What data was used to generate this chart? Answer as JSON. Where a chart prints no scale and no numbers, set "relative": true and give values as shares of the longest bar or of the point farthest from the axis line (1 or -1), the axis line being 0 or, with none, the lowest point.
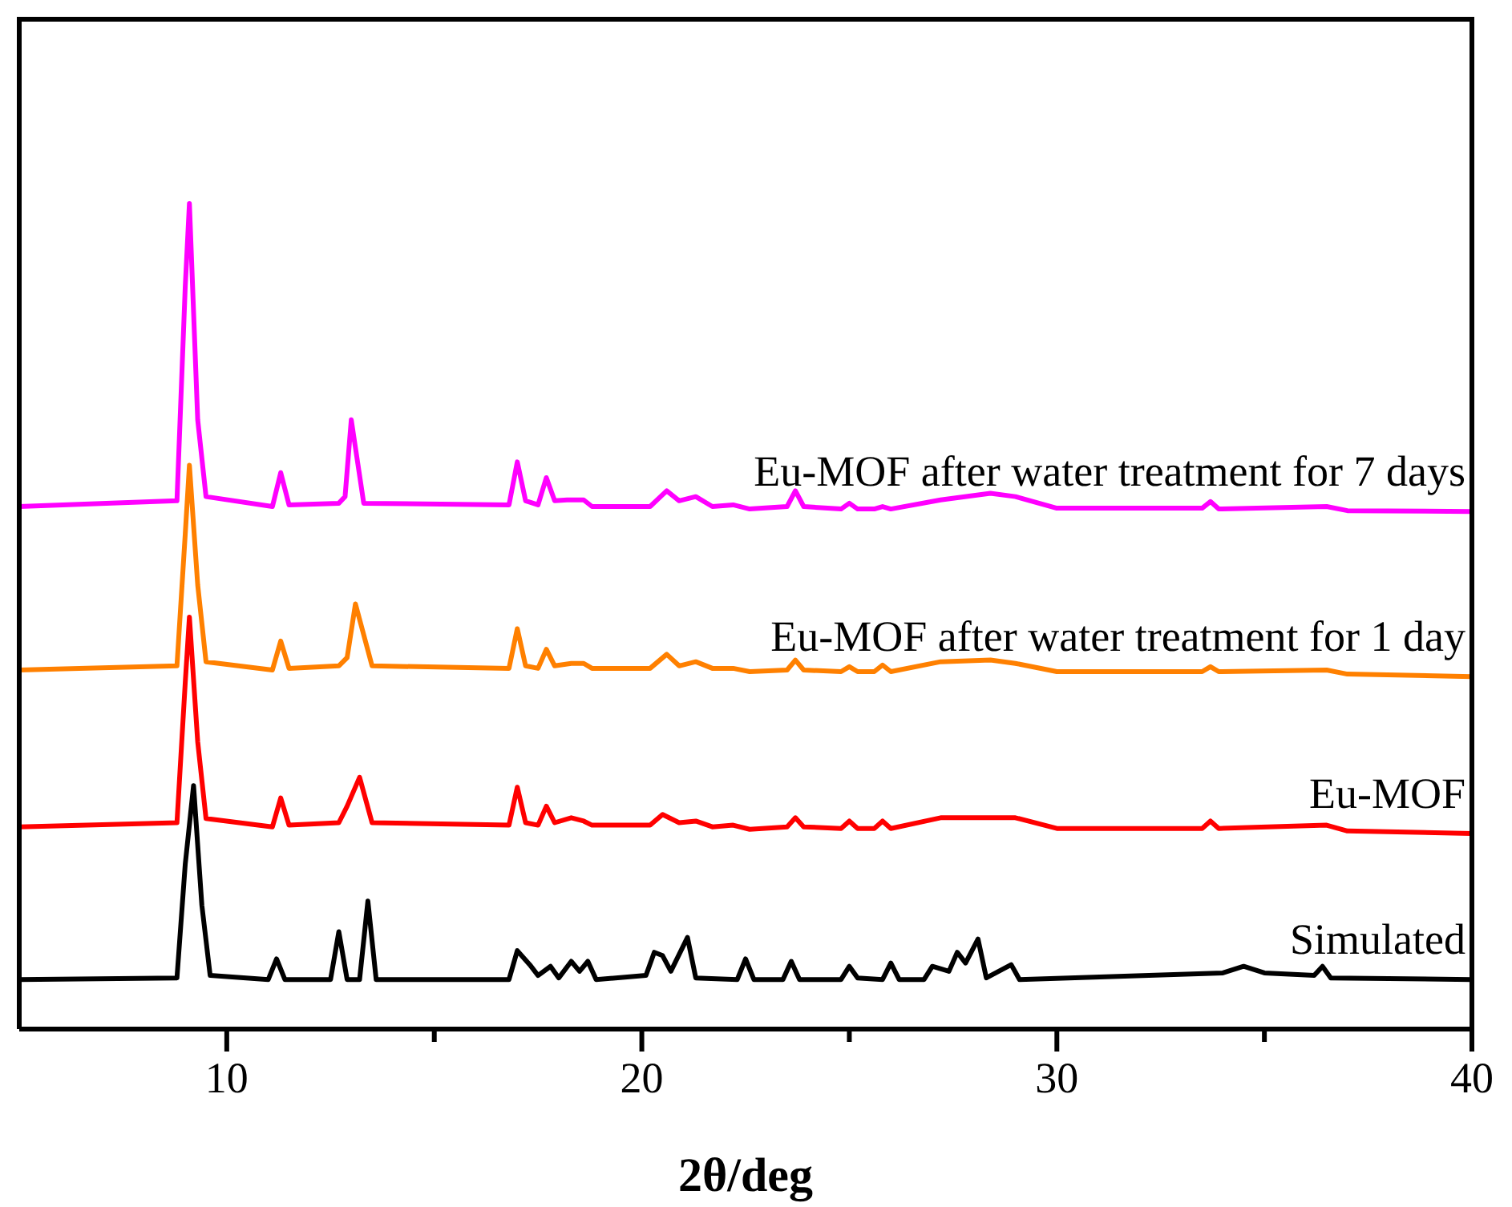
{
  "chart_data": {
    "type": "line",
    "relative": true,
    "xlabel": "2θ/deg",
    "xlim": [
      5,
      40
    ],
    "xticks": [
      10,
      {
        "value": 15,
        "label": null
      },
      20,
      {
        "value": 25,
        "label": null
      },
      30,
      {
        "value": 35,
        "label": null
      },
      40
    ],
    "tick_labels": "x",
    "grid": false,
    "legend": false,
    "marker": "none",
    "line_style": "solid",
    "series": [
      {
        "name": "Simulated",
        "color": "#000000",
        "x": [
          5,
          8.8,
          9.0,
          9.2,
          9.4,
          9.6,
          11.0,
          11.2,
          11.4,
          12.5,
          12.7,
          12.9,
          13.2,
          13.4,
          13.6,
          16.8,
          17.0,
          17.3,
          17.5,
          17.8,
          18.0,
          18.3,
          18.5,
          18.7,
          18.9,
          20.1,
          20.3,
          20.5,
          20.7,
          21.1,
          21.3,
          22.3,
          22.5,
          22.7,
          23.4,
          23.6,
          23.8,
          24.8,
          25.0,
          25.2,
          25.8,
          26.0,
          26.2,
          26.8,
          27.0,
          27.4,
          27.6,
          27.8,
          28.1,
          28.3,
          28.9,
          29.1,
          34.0,
          34.5,
          35.0,
          36.2,
          36.4,
          36.6,
          40
        ],
        "values": [
          0.06,
          0.062,
          0.2,
          0.295,
          0.15,
          0.065,
          0.06,
          0.085,
          0.06,
          0.06,
          0.118,
          0.06,
          0.06,
          0.155,
          0.06,
          0.06,
          0.095,
          0.078,
          0.065,
          0.076,
          0.062,
          0.082,
          0.07,
          0.082,
          0.06,
          0.065,
          0.093,
          0.089,
          0.07,
          0.111,
          0.062,
          0.06,
          0.085,
          0.06,
          0.06,
          0.082,
          0.06,
          0.06,
          0.076,
          0.062,
          0.06,
          0.08,
          0.06,
          0.06,
          0.076,
          0.07,
          0.093,
          0.08,
          0.109,
          0.062,
          0.078,
          0.06,
          0.068,
          0.076,
          0.068,
          0.065,
          0.076,
          0.062,
          0.06
        ]
      },
      {
        "name": "Eu-MOF",
        "color": "#ff0000",
        "x": [
          5,
          8.8,
          9.0,
          9.1,
          9.3,
          9.5,
          11.1,
          11.3,
          11.5,
          12.7,
          12.9,
          13.2,
          13.5,
          16.8,
          17.0,
          17.2,
          17.5,
          17.7,
          17.9,
          18.3,
          18.6,
          18.8,
          20.2,
          20.5,
          20.9,
          21.3,
          21.7,
          22.2,
          22.6,
          23.5,
          23.7,
          23.9,
          24.8,
          25.0,
          25.2,
          25.6,
          25.8,
          26.0,
          27.2,
          28.3,
          29.0,
          30,
          33.5,
          33.7,
          33.9,
          36.5,
          37,
          40
        ],
        "values": [
          0.245,
          0.25,
          0.42,
          0.499,
          0.348,
          0.255,
          0.245,
          0.28,
          0.247,
          0.25,
          0.27,
          0.305,
          0.25,
          0.247,
          0.293,
          0.25,
          0.247,
          0.27,
          0.25,
          0.256,
          0.252,
          0.247,
          0.247,
          0.26,
          0.25,
          0.252,
          0.245,
          0.247,
          0.242,
          0.245,
          0.256,
          0.245,
          0.243,
          0.252,
          0.243,
          0.243,
          0.252,
          0.243,
          0.256,
          0.256,
          0.256,
          0.243,
          0.243,
          0.252,
          0.243,
          0.247,
          0.24,
          0.237
        ]
      },
      {
        "name": "Eu-MOF after water treatment for 1 day",
        "color": "#ff8000",
        "x": [
          5,
          8.8,
          9.0,
          9.1,
          9.3,
          9.5,
          11.1,
          11.3,
          11.5,
          12.7,
          12.9,
          13.1,
          13.5,
          16.8,
          17.0,
          17.2,
          17.5,
          17.7,
          17.9,
          18.3,
          18.6,
          18.8,
          20.2,
          20.6,
          20.9,
          21.3,
          21.7,
          22.2,
          22.6,
          23.5,
          23.7,
          23.9,
          24.8,
          25.0,
          25.2,
          25.6,
          25.8,
          26.0,
          27.2,
          28.4,
          29.0,
          30,
          33.5,
          33.7,
          33.9,
          36.5,
          37,
          40
        ],
        "values": [
          0.435,
          0.44,
          0.6,
          0.683,
          0.538,
          0.445,
          0.435,
          0.47,
          0.437,
          0.44,
          0.45,
          0.515,
          0.44,
          0.437,
          0.485,
          0.44,
          0.437,
          0.46,
          0.44,
          0.443,
          0.443,
          0.437,
          0.437,
          0.454,
          0.44,
          0.445,
          0.437,
          0.437,
          0.433,
          0.435,
          0.447,
          0.435,
          0.433,
          0.439,
          0.433,
          0.433,
          0.441,
          0.433,
          0.445,
          0.447,
          0.443,
          0.433,
          0.433,
          0.439,
          0.433,
          0.435,
          0.43,
          0.427
        ]
      },
      {
        "name": "Eu-MOF after water treatment for 7 days",
        "color": "#ff00ff",
        "x": [
          5,
          8.8,
          9.0,
          9.1,
          9.3,
          9.5,
          11.1,
          11.3,
          11.5,
          12.7,
          12.85,
          13.0,
          13.3,
          16.8,
          17.0,
          17.2,
          17.5,
          17.7,
          17.9,
          18.2,
          18.6,
          18.8,
          20.2,
          20.6,
          20.9,
          21.3,
          21.7,
          22.2,
          22.6,
          23.5,
          23.7,
          23.9,
          24.8,
          25.0,
          25.2,
          25.6,
          25.8,
          26.0,
          27.2,
          28.4,
          29.0,
          30,
          33.5,
          33.7,
          33.9,
          36.5,
          37,
          40
        ],
        "values": [
          0.633,
          0.64,
          0.9,
          1,
          0.738,
          0.645,
          0.633,
          0.674,
          0.635,
          0.637,
          0.645,
          0.738,
          0.637,
          0.635,
          0.687,
          0.64,
          0.635,
          0.668,
          0.64,
          0.641,
          0.641,
          0.633,
          0.633,
          0.652,
          0.64,
          0.645,
          0.633,
          0.635,
          0.63,
          0.633,
          0.652,
          0.633,
          0.63,
          0.637,
          0.63,
          0.63,
          0.633,
          0.63,
          0.641,
          0.649,
          0.645,
          0.631,
          0.631,
          0.639,
          0.63,
          0.633,
          0.628,
          0.627
        ]
      }
    ]
  }
}
